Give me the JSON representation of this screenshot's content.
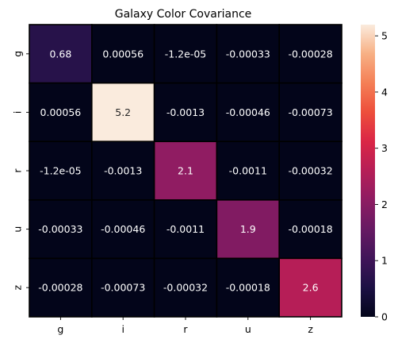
{
  "chart_data": {
    "type": "heatmap",
    "title": "Galaxy Color Covariance",
    "xlabel": "",
    "ylabel": "",
    "x_categories": [
      "g",
      "i",
      "r",
      "u",
      "z"
    ],
    "y_categories": [
      "g",
      "i",
      "r",
      "u",
      "z"
    ],
    "values": [
      [
        0.68,
        0.00056,
        -1.2e-05,
        -0.00033,
        -0.00028
      ],
      [
        0.00056,
        5.2,
        -0.0013,
        -0.00046,
        -0.00073
      ],
      [
        -1.2e-05,
        -0.0013,
        2.1,
        -0.0011,
        -0.00032
      ],
      [
        -0.00033,
        -0.00046,
        -0.0011,
        1.9,
        -0.00018
      ],
      [
        -0.00028,
        -0.00073,
        -0.00032,
        -0.00018,
        2.6
      ]
    ],
    "annotations": [
      [
        "0.68",
        "0.00056",
        "-1.2e-05",
        "-0.00033",
        "-0.00028"
      ],
      [
        "0.00056",
        "5.2",
        "-0.0013",
        "-0.00046",
        "-0.00073"
      ],
      [
        "-1.2e-05",
        "-0.0013",
        "2.1",
        "-0.0011",
        "-0.00032"
      ],
      [
        "-0.00033",
        "-0.00046",
        "-0.0011",
        "1.9",
        "-0.00018"
      ],
      [
        "-0.00028",
        "-0.00073",
        "-0.00032",
        "-0.00018",
        "2.6"
      ]
    ],
    "colorbar": {
      "min": 0,
      "max": 5.2,
      "ticks": [
        0,
        1,
        2,
        3,
        4,
        5
      ],
      "colormap": "rocket"
    },
    "cell_border_color": "#000000",
    "grid": false
  }
}
